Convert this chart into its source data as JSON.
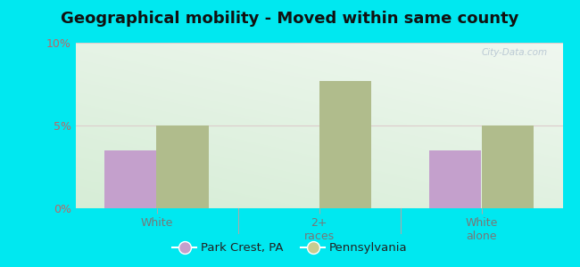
{
  "title": "Geographical mobility - Moved within same county",
  "categories": [
    "White",
    "2+\nraces",
    "White\nalone"
  ],
  "park_crest_values": [
    3.5,
    0,
    3.5
  ],
  "pennsylvania_values": [
    5.0,
    7.7,
    5.0
  ],
  "bar_color_purple": "#c4a0cc",
  "bar_color_green": "#b0bc8c",
  "ylim": [
    0,
    10
  ],
  "yticks": [
    0,
    5,
    10
  ],
  "ytick_labels": [
    "0%",
    "5%",
    "10%"
  ],
  "background_outer": "#00e8f0",
  "grid_color": "#e8e8e8",
  "legend_label_1": "Park Crest, PA",
  "legend_label_2": "Pennsylvania",
  "title_fontsize": 13,
  "bar_width": 0.32,
  "group_positions": [
    1,
    2,
    3
  ],
  "ytick_color": "#bb6666",
  "xtick_color": "#777777",
  "watermark": "City-Data.com"
}
